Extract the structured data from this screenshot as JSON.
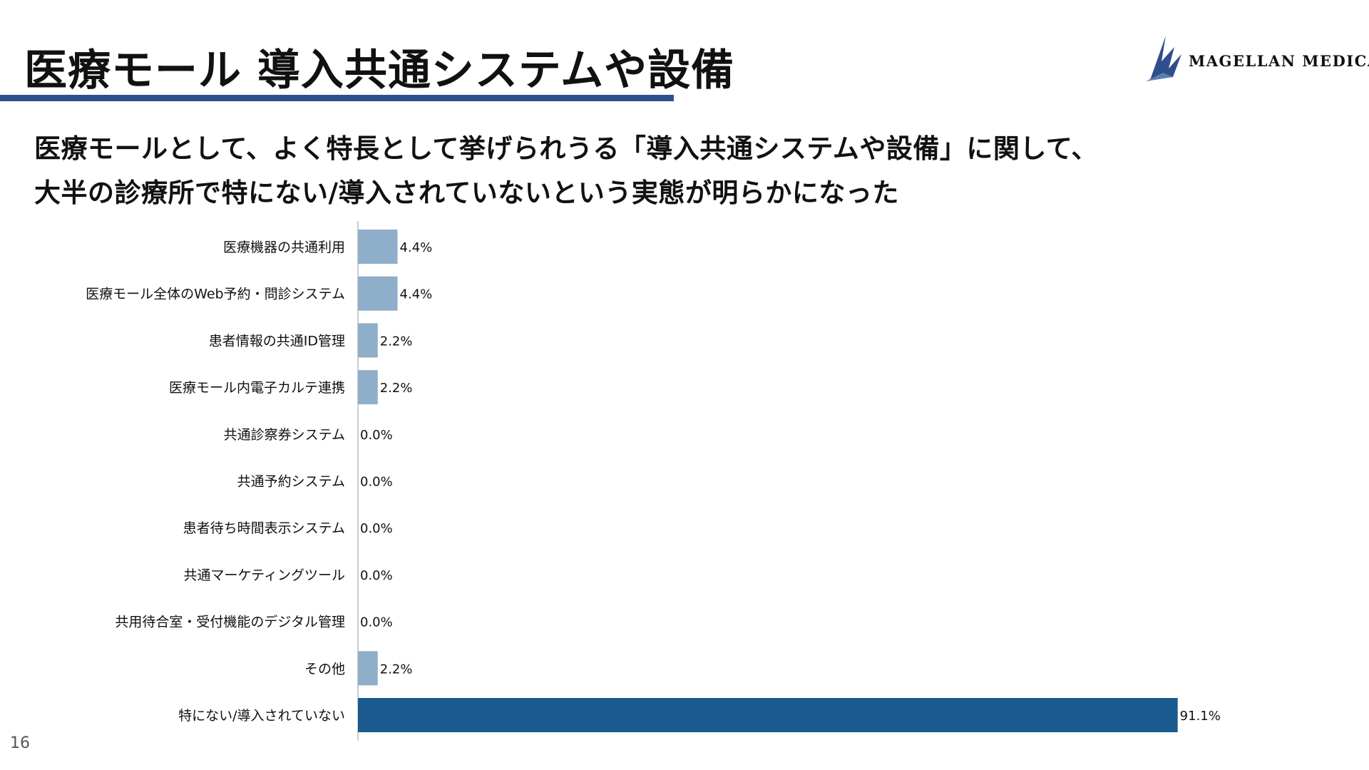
{
  "header": {
    "title": "医療モール 導入共通システムや設備",
    "logo_text": "MAGELLAN MEDICAL"
  },
  "subtitle": {
    "line1": "医療モールとして、よく特長として挙げられうる「導入共通システムや設備」に関して、",
    "line2": "大半の診療所で特にない/導入されていないという実態が明らかになった"
  },
  "page_number": "16",
  "colors": {
    "title_rule": "#2f4f8a",
    "bar_default": "#8eaec9",
    "bar_highlight": "#1a5a8e",
    "logo": "#2f4f8a"
  },
  "chart_data": {
    "type": "bar",
    "orientation": "horizontal",
    "categories": [
      "医療機器の共通利用",
      "医療モール全体のWeb予約・問診システム",
      "患者情報の共通ID管理",
      "医療モール内電子カルテ連携",
      "共通診察券システム",
      "共通予約システム",
      "患者待ち時間表示システム",
      "共通マーケティングツール",
      "共用待合室・受付機能のデジタル管理",
      "その他",
      "特にない/導入されていない"
    ],
    "values": [
      4.4,
      4.4,
      2.2,
      2.2,
      0.0,
      0.0,
      0.0,
      0.0,
      0.0,
      2.2,
      91.1
    ],
    "value_labels": [
      "4.4%",
      "4.4%",
      "2.2%",
      "2.2%",
      "0.0%",
      "0.0%",
      "0.0%",
      "0.0%",
      "0.0%",
      "2.2%",
      "91.1%"
    ],
    "highlight_index": 10,
    "xlim": [
      0,
      100
    ],
    "grid": false,
    "legend": "none"
  }
}
